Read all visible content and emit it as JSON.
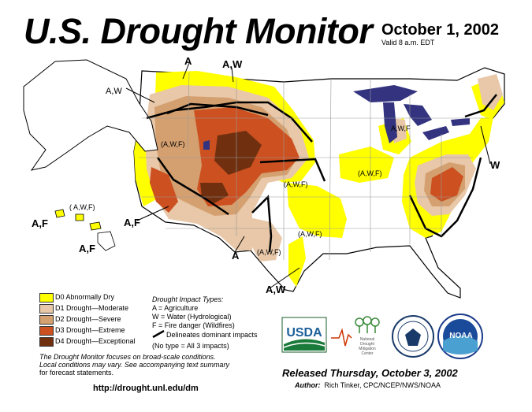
{
  "header": {
    "title": "U.S. Drought Monitor",
    "date": "October 1, 2002",
    "valid": "Valid 8 a.m. EDT"
  },
  "map_labels": {
    "a_top": "A",
    "aw_top": "A,W",
    "aw_nw": "A,W",
    "awf_west": "(A,W,F)",
    "awf_hawaii": "( A,W,F)",
    "af_hawaii_left": "A,F",
    "af_hawaii_bottom": "A,F",
    "af_sw": "A,F",
    "a_south": "A",
    "awf_texas": "(A,W,F)",
    "aw_gulf": "A,W",
    "awf_plains": "(A,W,F)",
    "awf_south_plains": "(A,W,F)",
    "awf_midwest": "(A,W,F)",
    "awf_michigan": "A,W,F",
    "w_east": "W"
  },
  "legend": {
    "items": [
      {
        "label": "D0 Abnormally Dry",
        "color": "#ffff00"
      },
      {
        "label": "D1 Drought—Moderate",
        "color": "#e8c8a8"
      },
      {
        "label": "D2 Drought—Severe",
        "color": "#d4a070"
      },
      {
        "label": "D3 Drought—Extreme",
        "color": "#cc5020"
      },
      {
        "label": "D4 Drought—Exceptional",
        "color": "#703010"
      }
    ]
  },
  "impact": {
    "heading": "Drought  Impact  Types:",
    "a": "A = Agriculture",
    "w": "W = Water (Hydrological)",
    "f": "F = Fire danger (Wildfires)",
    "delineates": "Delineates dominant impacts",
    "notype": "(No type = All 3 impacts)"
  },
  "note": {
    "line1": "The Drought Monitor focuses on broad-scale conditions.",
    "line2": "Local conditions may vary. See accompanying text summary",
    "line3": "for forecast statements."
  },
  "url": "http://drought.unl.edu/dm",
  "logos": {
    "usda": "USDA",
    "ndmc_line1": "National",
    "ndmc_line2": "Drought",
    "ndmc_line3": "Mitigation",
    "ndmc_line4": "Center",
    "noaa": "NOAA"
  },
  "released": "Released Thursday, October 3, 2002",
  "author": {
    "label": "Author:",
    "name": "Rich Tinker, CPC/NCEP/NWS/NOAA"
  },
  "colors": {
    "d0": "#ffff00",
    "d1": "#e8c8a8",
    "d2": "#d4a070",
    "d3": "#cc5020",
    "d4": "#703010",
    "water": "#333380"
  }
}
